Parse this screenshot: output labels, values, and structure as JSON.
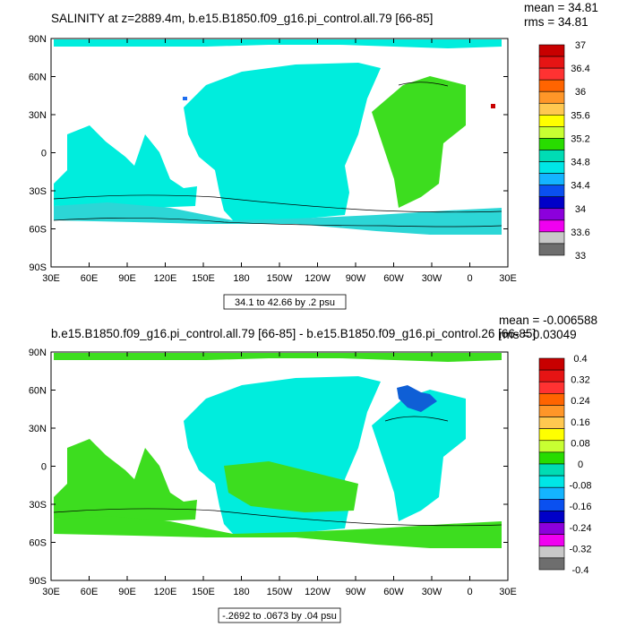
{
  "colors": {
    "ocean_fresh": "#13dd9f",
    "ocean_salty": "#3ddd1f",
    "land": "#ffffff",
    "negative": "#00ddee",
    "deep_negative": "#0f5fd6"
  },
  "chart_data": [
    {
      "type": "heatmap",
      "title": "SALINITY at z=2889.4m, b.e15.B1850.f09_g16.pi_control.all.79 [66-85]",
      "stats": [
        "mean = 34.81",
        "rms = 34.81"
      ],
      "contour_info": "34.1 to 42.66 by .2 psu",
      "x_ticks": [
        "30E",
        "60E",
        "90E",
        "120E",
        "150E",
        "180",
        "150W",
        "120W",
        "90W",
        "60W",
        "30W",
        "0",
        "30E"
      ],
      "y_ticks": [
        "90N",
        "60N",
        "30N",
        "0",
        "30S",
        "60S",
        "90S"
      ],
      "legend_colors": [
        "#c80000",
        "#e61414",
        "#ff3232",
        "#ff6400",
        "#ff9628",
        "#ffc850",
        "#ffff00",
        "#c8ff32",
        "#28dc00",
        "#00dcb4",
        "#00e6e6",
        "#14b4ff",
        "#0a50f0",
        "#0000c8",
        "#8c00dc",
        "#f000f0",
        "#c8c8c8",
        "#6e6e6e"
      ],
      "legend_labels": [
        "37",
        "36.4",
        "36",
        "35.6",
        "35.2",
        "34.8",
        "34.4",
        "34",
        "33.6",
        "33"
      ]
    },
    {
      "type": "heatmap",
      "title": "b.e15.B1850.f09_g16.pi_control.all.79 [66-85] - b.e15.B1850.f09_g16.pi_control.26 [66-85]",
      "stats": [
        "mean = -0.006588",
        "rms = 0.03049"
      ],
      "contour_info": "-.2692 to .0673 by .04 psu",
      "x_ticks": [
        "30E",
        "60E",
        "90E",
        "120E",
        "150E",
        "180",
        "150W",
        "120W",
        "90W",
        "60W",
        "30W",
        "0",
        "30E"
      ],
      "y_ticks": [
        "90N",
        "60N",
        "30N",
        "0",
        "30S",
        "60S",
        "90S"
      ],
      "legend_colors": [
        "#c80000",
        "#e61414",
        "#ff3232",
        "#ff6400",
        "#ff9628",
        "#ffc850",
        "#ffff00",
        "#c8ff32",
        "#28dc00",
        "#00dcb4",
        "#00e6e6",
        "#14b4ff",
        "#0a50f0",
        "#0000c8",
        "#8c00dc",
        "#f000f0",
        "#c8c8c8",
        "#6e6e6e"
      ],
      "legend_labels": [
        "0.4",
        "0.32",
        "0.24",
        "0.16",
        "0.08",
        "0",
        "-0.08",
        "-0.16",
        "-0.24",
        "-0.32",
        "-0.4"
      ]
    }
  ]
}
